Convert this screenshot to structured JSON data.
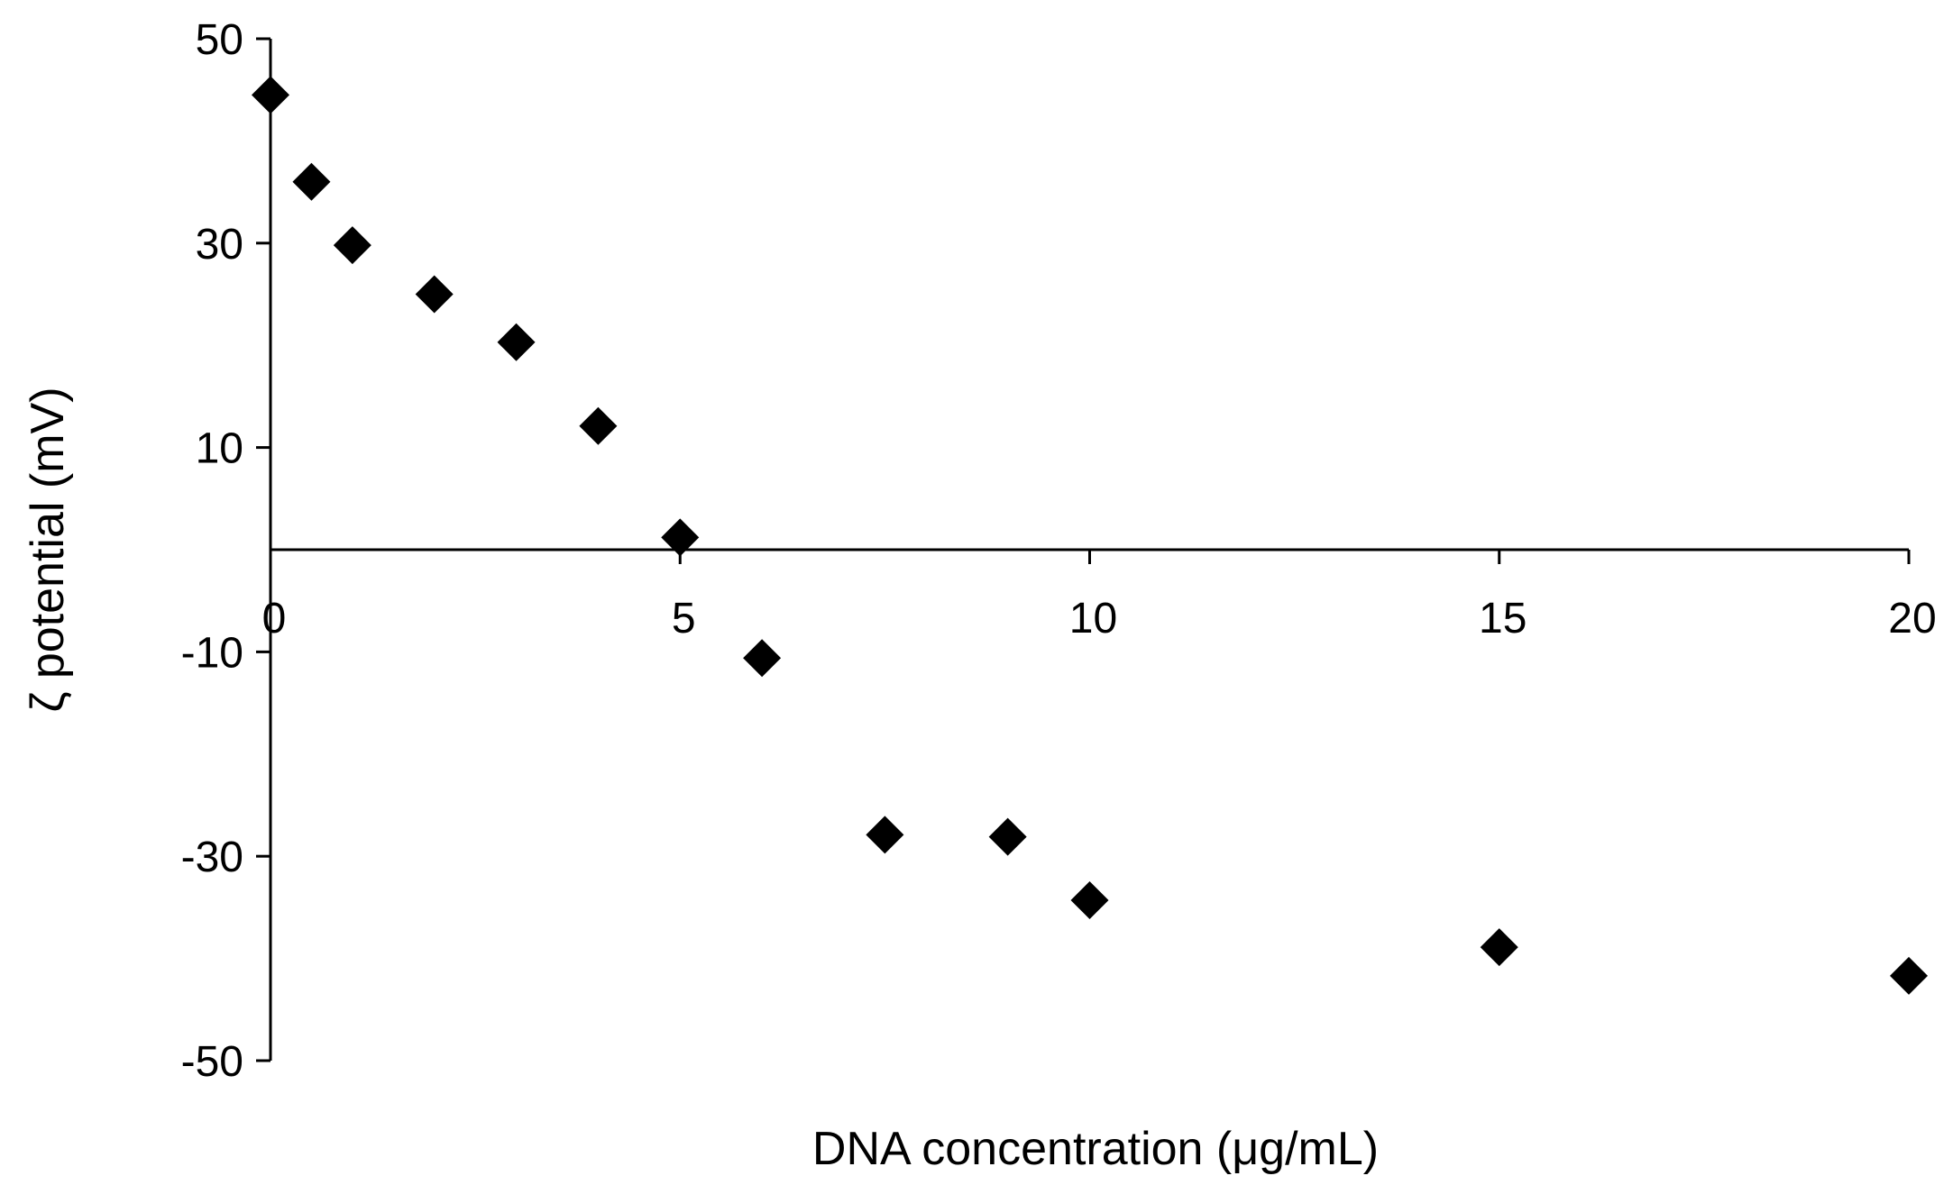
{
  "chart_data": {
    "type": "scatter",
    "title": "",
    "xlabel": "DNA concentration (μg/mL)",
    "ylabel": "ζ potential (mV)",
    "xlim": [
      0,
      20
    ],
    "ylim": [
      -50,
      50
    ],
    "x_ticks": [
      0,
      5,
      10,
      15,
      20
    ],
    "x_tick_labels": [
      "0",
      "5",
      "10",
      "15",
      "20"
    ],
    "y_ticks": [
      -50,
      -30,
      -10,
      10,
      30,
      50
    ],
    "y_tick_labels": [
      "-50",
      "-30",
      "-10",
      "10",
      "30",
      "50"
    ],
    "grid": false,
    "legend": "none",
    "marker": "diamond",
    "marker_color": "#000000",
    "series": [
      {
        "points": [
          {
            "x": 0,
            "y": 44.5
          },
          {
            "x": 0.5,
            "y": 36
          },
          {
            "x": 1,
            "y": 29.8
          },
          {
            "x": 2,
            "y": 25
          },
          {
            "x": 3,
            "y": 20.3
          },
          {
            "x": 4,
            "y": 12.1
          },
          {
            "x": 5,
            "y": 1.2
          },
          {
            "x": 6,
            "y": -10.6
          },
          {
            "x": 7.5,
            "y": -27.9
          },
          {
            "x": 9,
            "y": -28.1
          },
          {
            "x": 10,
            "y": -34.3
          },
          {
            "x": 15,
            "y": -38.9
          },
          {
            "x": 20,
            "y": -41.7
          }
        ]
      }
    ]
  }
}
